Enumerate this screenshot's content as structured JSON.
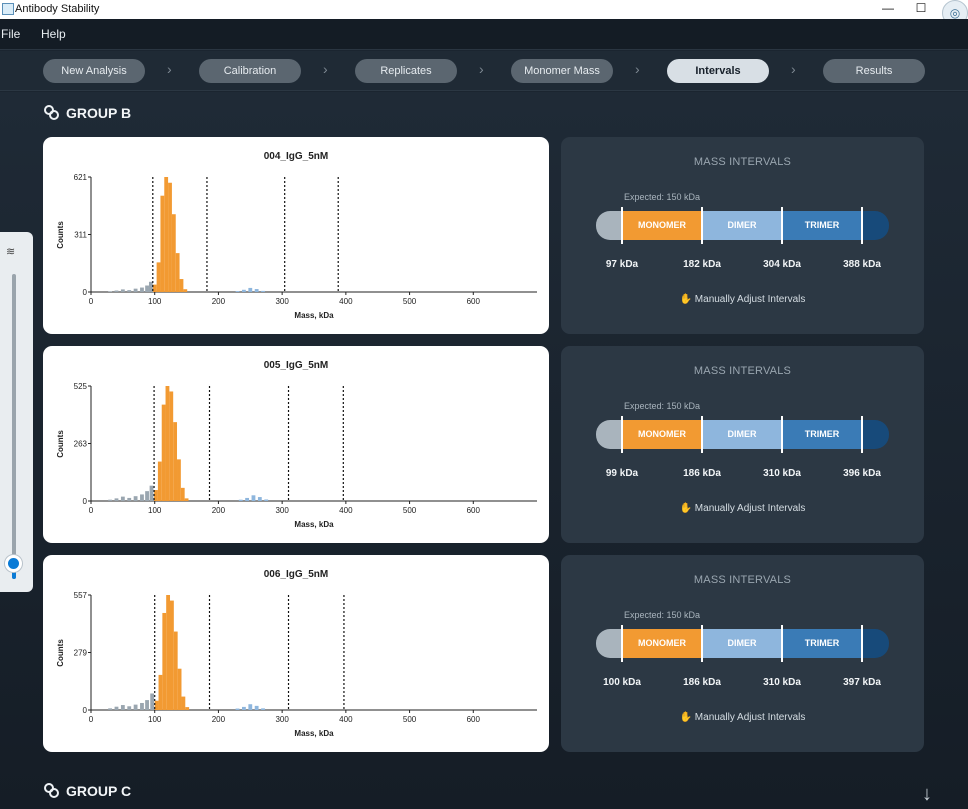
{
  "window": {
    "title": "Antibody Stability",
    "minimize": "—",
    "maximize": "☐",
    "close": "✕",
    "camera_icon": "camera-icon"
  },
  "menu": {
    "file": "File",
    "help": "Help"
  },
  "steps": [
    {
      "label": "New Analysis"
    },
    {
      "label": "Calibration"
    },
    {
      "label": "Replicates"
    },
    {
      "label": "Monomer Mass"
    },
    {
      "label": "Intervals",
      "active": true
    },
    {
      "label": "Results"
    }
  ],
  "groups": {
    "b": "GROUP B",
    "c": "GROUP C"
  },
  "panel_common": {
    "title": "MASS INTERVALS",
    "expected": "Expected: 150 kDa",
    "monomer": "MONOMER",
    "dimer": "DIMER",
    "trimer": "TRIMER",
    "adjust": "Manually Adjust Intervals"
  },
  "rows": [
    {
      "chart_title": "004_IgG_5nM",
      "ymax_label": "621",
      "ymid_label": "311",
      "y0_label": "0",
      "ylabel": "Counts",
      "xlabel": "Mass, kDa",
      "lines": [
        97,
        182,
        304,
        388
      ],
      "kda": [
        "97 kDa",
        "182 kDa",
        "304 kDa",
        "388 kDa"
      ]
    },
    {
      "chart_title": "005_IgG_5nM",
      "ymax_label": "525",
      "ymid_label": "263",
      "y0_label": "0",
      "ylabel": "Counts",
      "xlabel": "Mass, kDa",
      "lines": [
        99,
        186,
        310,
        396
      ],
      "kda": [
        "99 kDa",
        "186 kDa",
        "310 kDa",
        "396 kDa"
      ]
    },
    {
      "chart_title": "006_IgG_5nM",
      "ymax_label": "557",
      "ymid_label": "279",
      "y0_label": "0",
      "ylabel": "Counts",
      "xlabel": "Mass, kDa",
      "lines": [
        100,
        186,
        310,
        397
      ],
      "kda": [
        "100 kDa",
        "186 kDa",
        "310 kDa",
        "397 kDa"
      ]
    }
  ],
  "chart_data": [
    {
      "type": "bar",
      "title": "004_IgG_5nM",
      "xlabel": "Mass, kDa",
      "ylabel": "Counts",
      "xlim": [
        0,
        700
      ],
      "ylim": [
        0,
        621
      ],
      "x_ticks": [
        "0",
        "100",
        "200",
        "300",
        "400",
        "500",
        "600"
      ],
      "y_ticks": [
        "0",
        "311",
        "621"
      ],
      "interval_lines": [
        97,
        182,
        304,
        388
      ],
      "series": [
        {
          "color": "#f29a32",
          "x": [
            100,
            106,
            112,
            118,
            124,
            130,
            136,
            142,
            148
          ],
          "values": [
            40,
            160,
            520,
            621,
            590,
            420,
            210,
            70,
            15
          ]
        },
        {
          "color": "#9aa6b0",
          "x": [
            30,
            40,
            50,
            60,
            70,
            80,
            88,
            94
          ],
          "values": [
            4,
            8,
            14,
            10,
            18,
            24,
            35,
            55
          ]
        },
        {
          "color": "#8eb6dd",
          "x": [
            230,
            240,
            250,
            260,
            270
          ],
          "values": [
            5,
            12,
            22,
            16,
            6
          ]
        }
      ]
    },
    {
      "type": "bar",
      "title": "005_IgG_5nM",
      "xlabel": "Mass, kDa",
      "ylabel": "Counts",
      "xlim": [
        0,
        700
      ],
      "ylim": [
        0,
        525
      ],
      "x_ticks": [
        "0",
        "100",
        "200",
        "300",
        "400",
        "500",
        "600"
      ],
      "y_ticks": [
        "0",
        "263",
        "525"
      ],
      "interval_lines": [
        99,
        186,
        310,
        396
      ],
      "series": [
        {
          "color": "#f29a32",
          "x": [
            102,
            108,
            114,
            120,
            126,
            132,
            138,
            144,
            150
          ],
          "values": [
            50,
            180,
            440,
            525,
            500,
            360,
            190,
            60,
            12
          ]
        },
        {
          "color": "#9aa6b0",
          "x": [
            30,
            40,
            50,
            60,
            70,
            80,
            88,
            95
          ],
          "values": [
            6,
            12,
            20,
            14,
            22,
            30,
            45,
            70
          ]
        },
        {
          "color": "#8eb6dd",
          "x": [
            235,
            245,
            255,
            265,
            275
          ],
          "values": [
            6,
            14,
            26,
            18,
            7
          ]
        }
      ]
    },
    {
      "type": "bar",
      "title": "006_IgG_5nM",
      "xlabel": "Mass, kDa",
      "ylabel": "Counts",
      "xlim": [
        0,
        700
      ],
      "ylim": [
        0,
        557
      ],
      "x_ticks": [
        "0",
        "100",
        "200",
        "300",
        "400",
        "500",
        "600"
      ],
      "y_ticks": [
        "0",
        "279",
        "557"
      ],
      "interval_lines": [
        100,
        186,
        310,
        397
      ],
      "series": [
        {
          "color": "#f29a32",
          "x": [
            103,
            109,
            115,
            121,
            127,
            133,
            139,
            145,
            151
          ],
          "values": [
            45,
            170,
            470,
            557,
            530,
            380,
            200,
            65,
            14
          ]
        },
        {
          "color": "#9aa6b0",
          "x": [
            30,
            40,
            50,
            60,
            70,
            80,
            88,
            96
          ],
          "values": [
            8,
            16,
            24,
            18,
            26,
            34,
            48,
            80
          ]
        },
        {
          "color": "#8eb6dd",
          "x": [
            230,
            240,
            250,
            260,
            270
          ],
          "values": [
            7,
            15,
            28,
            20,
            8
          ]
        }
      ]
    }
  ]
}
